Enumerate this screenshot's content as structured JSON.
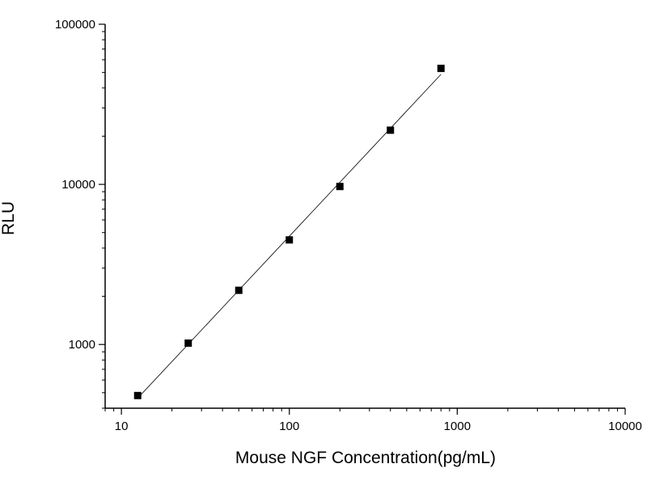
{
  "chart_data": {
    "type": "scatter",
    "title": "",
    "xlabel": "Mouse NGF Concentration(pg/mL)",
    "ylabel": "RLU",
    "xscale": "log",
    "yscale": "log",
    "xlim": [
      8,
      10000
    ],
    "ylim": [
      400,
      100000
    ],
    "x_ticks": [
      "10",
      "100",
      "1000",
      "10000"
    ],
    "y_ticks": [
      "1000",
      "10000",
      "100000"
    ],
    "grid": false,
    "legend": "none",
    "series": [
      {
        "x": [
          12.5,
          25,
          50,
          100,
          200,
          400,
          800
        ],
        "y": [
          480,
          1020,
          2180,
          4500,
          9700,
          21800,
          53000
        ],
        "marker": "square",
        "line": "fit"
      }
    ],
    "colors": {
      "marker": "#000000",
      "line": "#000000",
      "axis": "#000000"
    }
  }
}
